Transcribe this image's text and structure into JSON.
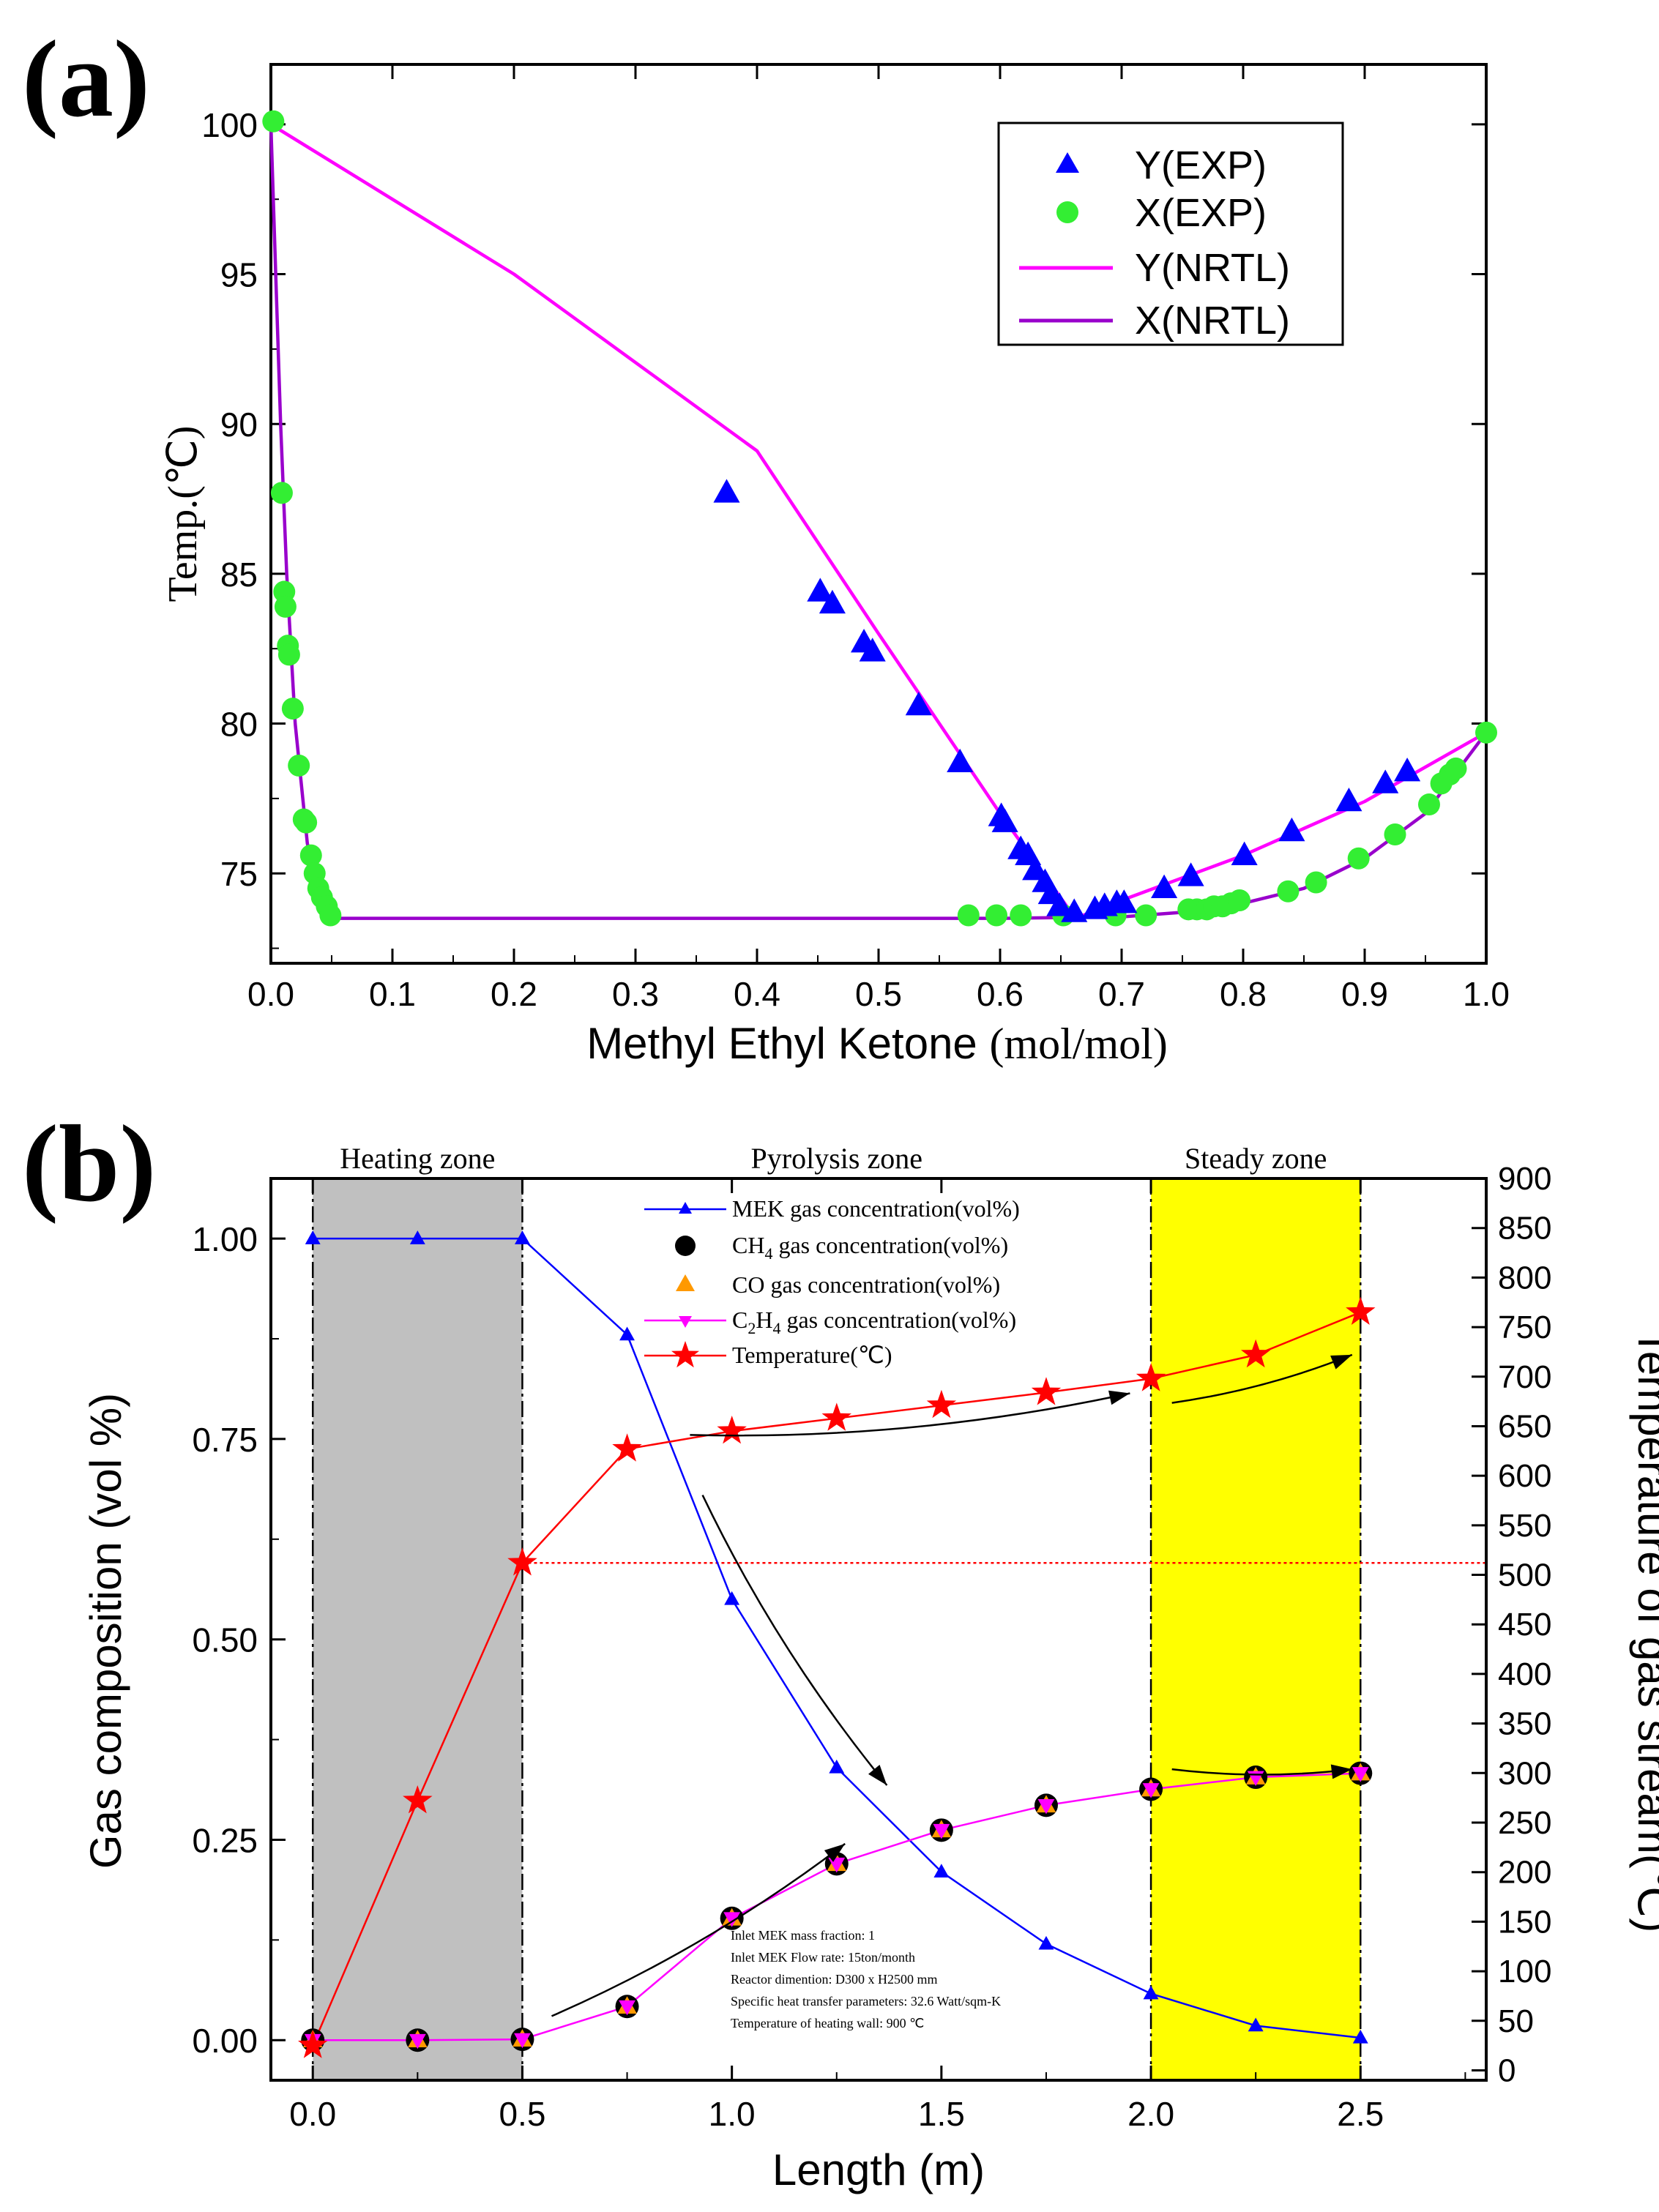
{
  "chart_data": [
    {
      "panel_label": "(a)",
      "type": "scatter",
      "xlabel_main": "Methyl Ethyl Ketone",
      "xlabel_unit": "(mol/mol)",
      "ylabel": "Temp.(℃)",
      "xlim": [
        0.0,
        1.0
      ],
      "ylim": [
        72,
        102
      ],
      "xticks": [
        0.0,
        0.1,
        0.2,
        0.3,
        0.4,
        0.5,
        0.6,
        0.7,
        0.8,
        0.9,
        1.0
      ],
      "xtick_labels": [
        "0.0",
        "0.1",
        "0.2",
        "0.3",
        "0.4",
        "0.5",
        "0.6",
        "0.7",
        "0.8",
        "0.9",
        "1.0"
      ],
      "yticks": [
        75,
        80,
        85,
        90,
        95,
        100
      ],
      "ytick_labels": [
        "75",
        "80",
        "85",
        "90",
        "95",
        "100"
      ],
      "legend_position": "top-right",
      "colors": {
        "y_exp": "#0000ff",
        "x_exp": "#33ee33",
        "y_nrtl": "#ff00ff",
        "x_nrtl": "#9900cc"
      },
      "series": [
        {
          "name": "Y(EXP)",
          "kind": "triangle",
          "points": [
            [
              0.375,
              87.7
            ],
            [
              0.452,
              84.4
            ],
            [
              0.462,
              84.0
            ],
            [
              0.488,
              82.7
            ],
            [
              0.495,
              82.4
            ],
            [
              0.533,
              80.6
            ],
            [
              0.567,
              78.7
            ],
            [
              0.601,
              76.9
            ],
            [
              0.604,
              76.7
            ],
            [
              0.617,
              75.8
            ],
            [
              0.623,
              75.6
            ],
            [
              0.629,
              75.1
            ],
            [
              0.637,
              74.7
            ],
            [
              0.642,
              74.3
            ],
            [
              0.649,
              73.9
            ],
            [
              0.661,
              73.7
            ],
            [
              0.678,
              73.8
            ],
            [
              0.686,
              73.9
            ],
            [
              0.696,
              74.0
            ],
            [
              0.702,
              74.0
            ],
            [
              0.735,
              74.5
            ],
            [
              0.757,
              74.9
            ],
            [
              0.801,
              75.6
            ],
            [
              0.84,
              76.4
            ],
            [
              0.887,
              77.4
            ],
            [
              0.917,
              78.0
            ],
            [
              0.935,
              78.4
            ]
          ]
        },
        {
          "name": "X(EXP)",
          "kind": "circle",
          "points": [
            [
              0.002,
              100.1
            ],
            [
              0.009,
              87.7
            ],
            [
              0.011,
              84.4
            ],
            [
              0.012,
              83.9
            ],
            [
              0.014,
              82.6
            ],
            [
              0.015,
              82.3
            ],
            [
              0.018,
              80.5
            ],
            [
              0.023,
              78.6
            ],
            [
              0.027,
              76.8
            ],
            [
              0.029,
              76.7
            ],
            [
              0.033,
              75.6
            ],
            [
              0.036,
              75.0
            ],
            [
              0.039,
              74.5
            ],
            [
              0.042,
              74.2
            ],
            [
              0.046,
              73.9
            ],
            [
              0.049,
              73.6
            ],
            [
              0.574,
              73.6
            ],
            [
              0.597,
              73.6
            ],
            [
              0.617,
              73.6
            ],
            [
              0.652,
              73.6
            ],
            [
              0.695,
              73.6
            ],
            [
              0.72,
              73.6
            ],
            [
              0.755,
              73.8
            ],
            [
              0.762,
              73.8
            ],
            [
              0.77,
              73.8
            ],
            [
              0.776,
              73.9
            ],
            [
              0.783,
              73.9
            ],
            [
              0.79,
              74.0
            ],
            [
              0.797,
              74.1
            ],
            [
              0.837,
              74.4
            ],
            [
              0.86,
              74.7
            ],
            [
              0.895,
              75.5
            ],
            [
              0.925,
              76.3
            ],
            [
              0.953,
              77.3
            ],
            [
              0.963,
              78.0
            ],
            [
              0.97,
              78.3
            ],
            [
              0.975,
              78.5
            ],
            [
              1.0,
              79.7
            ]
          ]
        },
        {
          "name": "Y(NRTL)",
          "kind": "line",
          "points": [
            [
              0.0,
              100.0
            ],
            [
              0.2,
              95.0
            ],
            [
              0.4,
              89.1
            ],
            [
              0.5,
              83.0
            ],
            [
              0.6,
              77.0
            ],
            [
              0.662,
              73.5
            ],
            [
              0.7,
              74.1
            ],
            [
              0.8,
              75.6
            ],
            [
              0.9,
              77.4
            ],
            [
              1.0,
              79.7
            ]
          ]
        },
        {
          "name": "X(NRTL)",
          "kind": "line",
          "points": [
            [
              0.0,
              100.0
            ],
            [
              0.004,
              95.0
            ],
            [
              0.008,
              90.0
            ],
            [
              0.013,
              85.0
            ],
            [
              0.02,
              80.0
            ],
            [
              0.03,
              76.0
            ],
            [
              0.04,
              74.2
            ],
            [
              0.055,
              73.5
            ],
            [
              0.6,
              73.5
            ],
            [
              0.7,
              73.55
            ],
            [
              0.75,
              73.7
            ],
            [
              0.8,
              74.0
            ],
            [
              0.85,
              74.5
            ],
            [
              0.9,
              75.5
            ],
            [
              0.95,
              77.0
            ],
            [
              1.0,
              79.7
            ]
          ]
        }
      ]
    },
    {
      "panel_label": "(b)",
      "type": "line",
      "xlabel": "Length (m)",
      "ylabel_left": "Gas composition (vol %)",
      "ylabel_right": "Temperature of gas stream(℃)",
      "xlim": [
        -0.1,
        2.8
      ],
      "ylim_left": [
        -0.05,
        1.075
      ],
      "ylim_right": [
        -10,
        900
      ],
      "xticks": [
        0.0,
        0.5,
        1.0,
        1.5,
        2.0,
        2.5
      ],
      "xtick_labels": [
        "0.0",
        "0.5",
        "1.0",
        "1.5",
        "2.0",
        "2.5"
      ],
      "yticks_left": [
        0.0,
        0.25,
        0.5,
        0.75,
        1.0
      ],
      "ytick_labels_left": [
        "0.00",
        "0.25",
        "0.50",
        "0.75",
        "1.00"
      ],
      "yticks_right": [
        0,
        50,
        100,
        150,
        200,
        250,
        300,
        350,
        400,
        450,
        500,
        550,
        600,
        650,
        700,
        750,
        800,
        850,
        900
      ],
      "ytick_labels_right": [
        "0",
        "50",
        "100",
        "150",
        "200",
        "250",
        "300",
        "350",
        "400",
        "450",
        "500",
        "550",
        "600",
        "650",
        "700",
        "750",
        "800",
        "850",
        "900"
      ],
      "zones": [
        {
          "name": "Heating zone",
          "x_range": [
            0.0,
            0.5
          ],
          "color": "#c0c0c0"
        },
        {
          "name": "Pyrolysis zone",
          "x_range": [
            0.5,
            2.0
          ],
          "color": "#ffffff"
        },
        {
          "name": "Steady zone",
          "x_range": [
            2.0,
            2.5
          ],
          "color": "#ffff00"
        }
      ],
      "reference_line": {
        "axis": "right",
        "value": 512,
        "x_from": 0.5,
        "color": "#ff0000"
      },
      "x": [
        0.0,
        0.25,
        0.5,
        0.75,
        1.0,
        1.25,
        1.5,
        1.75,
        2.0,
        2.25,
        2.5
      ],
      "series": [
        {
          "name_main": "MEK gas concentration(vol%)",
          "axis": "left",
          "marker": "triangle",
          "color": "#0000ff",
          "values": [
            1.0,
            1.0,
            1.0,
            0.88,
            0.55,
            0.34,
            0.21,
            0.12,
            0.058,
            0.018,
            0.003
          ]
        },
        {
          "name_prefix": "CH",
          "name_sub": "4",
          "name_rest": " gas concentration(vol%)",
          "axis": "left",
          "marker": "circle",
          "color": "#000000",
          "values": [
            0.0,
            0.0,
            0.001,
            0.042,
            0.152,
            0.22,
            0.262,
            0.293,
            0.313,
            0.328,
            0.333
          ]
        },
        {
          "name_main": "CO gas concentration(vol%)",
          "axis": "left",
          "marker": "triangle",
          "color": "#ff9900",
          "values": [
            0.0,
            0.0,
            0.001,
            0.042,
            0.152,
            0.22,
            0.262,
            0.293,
            0.313,
            0.328,
            0.333
          ]
        },
        {
          "name_prefix": "C",
          "name_sub": "2",
          "name_mid": "H",
          "name_sub2": "4",
          "name_rest": " gas concentration(vol%)",
          "axis": "left",
          "marker": "triangle-down",
          "color": "#ff00ff",
          "values": [
            0.0,
            0.0,
            0.001,
            0.042,
            0.152,
            0.22,
            0.262,
            0.293,
            0.313,
            0.328,
            0.333
          ]
        },
        {
          "name_main": "Temperature(℃)",
          "axis": "right",
          "marker": "star",
          "color": "#ff0000",
          "values": [
            25,
            272,
            512,
            627,
            645,
            658,
            671,
            684,
            698,
            722,
            765
          ]
        }
      ],
      "annotations": [
        "Inlet MEK mass fraction: 1",
        "Inlet MEK Flow rate: 15ton/month",
        "Reactor dimention: D300 x H2500 mm",
        "Specific heat transfer parameters: 32.6 Watt/sqm-K",
        "Temperature of heating wall: 900 ℃"
      ],
      "arrows": [
        {
          "from": [
            0.9,
            0.755
          ],
          "to": [
            1.95,
            0.807
          ]
        },
        {
          "from": [
            2.05,
            0.795
          ],
          "to": [
            2.48,
            0.855
          ]
        },
        {
          "from": [
            0.93,
            0.68
          ],
          "to": [
            1.37,
            0.318
          ]
        },
        {
          "from": [
            0.57,
            0.03
          ],
          "to": [
            1.27,
            0.245
          ]
        },
        {
          "from": [
            2.05,
            0.338
          ],
          "to": [
            2.48,
            0.338
          ]
        }
      ]
    }
  ]
}
